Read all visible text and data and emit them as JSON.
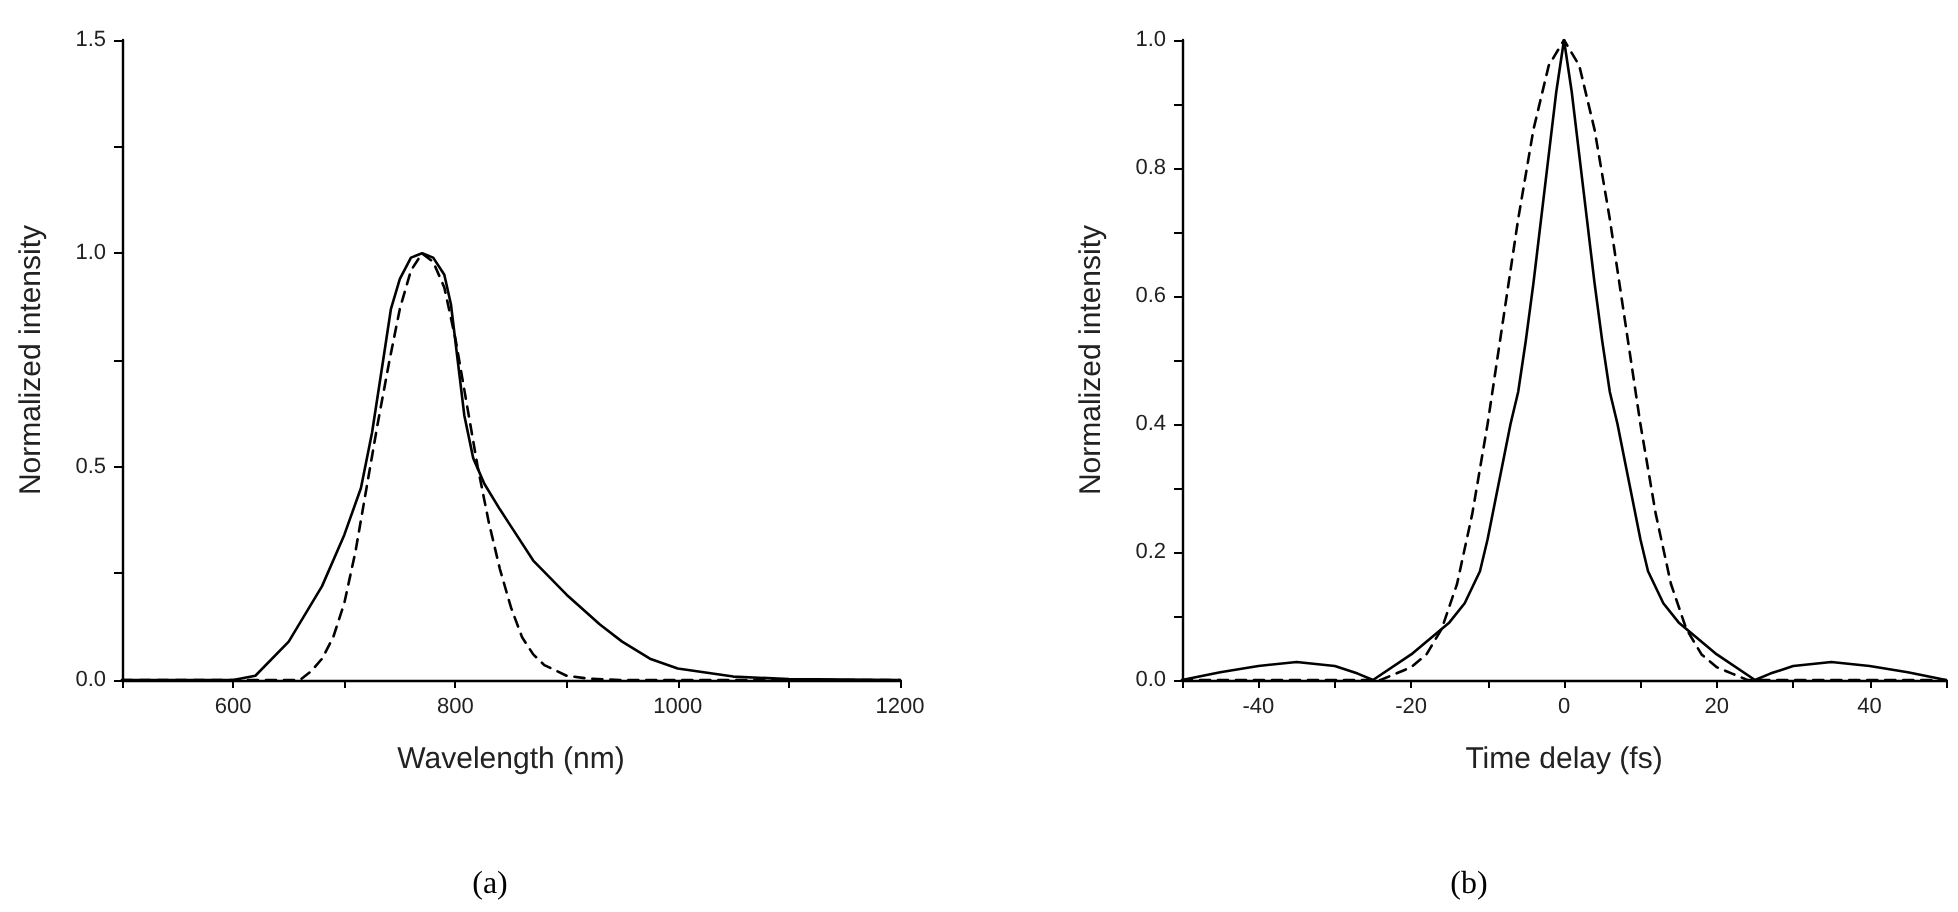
{
  "chart_data": [
    {
      "type": "line",
      "xlabel": "Wavelength (nm)",
      "ylabel": "Normalized intensity",
      "annotations": [
        "(a)"
      ],
      "xlim": [
        500,
        1200
      ],
      "ylim": [
        0,
        1.5
      ],
      "xticks": [
        {
          "value": 500,
          "label": null
        },
        600,
        {
          "value": 700,
          "label": null
        },
        800,
        {
          "value": 900,
          "label": null
        },
        1000,
        {
          "value": 1100,
          "label": null
        },
        1200
      ],
      "yticks": [
        {
          "value": 0,
          "label": "0.0"
        },
        {
          "value": 0.25,
          "label": null
        },
        {
          "value": 0.5,
          "label": "0.5"
        },
        {
          "value": 0.75,
          "label": null
        },
        {
          "value": 1,
          "label": "1.0"
        },
        {
          "value": 1.25,
          "label": null
        },
        {
          "value": 1.5,
          "label": "1.5"
        }
      ],
      "grid": false,
      "marker": "none",
      "series": [
        {
          "color": "#000000",
          "line_style": "solid",
          "x": [
            500,
            600,
            620,
            650,
            680,
            700,
            715,
            725,
            735,
            742,
            750,
            760,
            770,
            780,
            790,
            796,
            802,
            808,
            816,
            826,
            840,
            850,
            870,
            900,
            930,
            950,
            975,
            1000,
            1050,
            1100,
            1200
          ],
          "values": [
            0,
            0,
            0.01,
            0.09,
            0.22,
            0.34,
            0.45,
            0.58,
            0.75,
            0.87,
            0.94,
            0.99,
            1.0,
            0.99,
            0.95,
            0.88,
            0.75,
            0.62,
            0.52,
            0.46,
            0.4,
            0.36,
            0.28,
            0.2,
            0.13,
            0.09,
            0.05,
            0.027,
            0.008,
            0.002,
            0
          ]
        },
        {
          "color": "#000000",
          "line_style": "dashed",
          "x": [
            500,
            660,
            670,
            680,
            690,
            700,
            710,
            720,
            730,
            740,
            750,
            760,
            770,
            780,
            790,
            800,
            810,
            820,
            830,
            840,
            850,
            860,
            870,
            880,
            900,
            920,
            950,
            1200
          ],
          "values": [
            0,
            0,
            0.02,
            0.05,
            0.1,
            0.18,
            0.3,
            0.45,
            0.6,
            0.74,
            0.87,
            0.96,
            1.0,
            0.98,
            0.92,
            0.8,
            0.65,
            0.5,
            0.37,
            0.26,
            0.17,
            0.1,
            0.06,
            0.035,
            0.01,
            0.003,
            0,
            0
          ]
        }
      ]
    },
    {
      "type": "line",
      "xlabel": "Time delay (fs)",
      "ylabel": "Normalized intensity",
      "annotations": [
        "(b)"
      ],
      "xlim": [
        -50,
        50
      ],
      "ylim": [
        0,
        1.0
      ],
      "xticks": [
        {
          "value": -50,
          "label": null
        },
        -40,
        {
          "value": -30,
          "label": null
        },
        -20,
        {
          "value": -10,
          "label": null
        },
        0,
        {
          "value": 10,
          "label": null
        },
        20,
        {
          "value": 30,
          "label": null
        },
        40,
        {
          "value": 50,
          "label": null
        }
      ],
      "yticks": [
        {
          "value": 0,
          "label": "0.0"
        },
        {
          "value": 0.1,
          "label": null
        },
        {
          "value": 0.2,
          "label": "0.2"
        },
        {
          "value": 0.3,
          "label": null
        },
        {
          "value": 0.4,
          "label": "0.4"
        },
        {
          "value": 0.5,
          "label": null
        },
        {
          "value": 0.6,
          "label": "0.6"
        },
        {
          "value": 0.7,
          "label": null
        },
        {
          "value": 0.8,
          "label": "0.8"
        },
        {
          "value": 0.9,
          "label": null
        },
        {
          "value": 1.0,
          "label": "1.0"
        }
      ],
      "grid": false,
      "marker": "none",
      "series": [
        {
          "color": "#000000",
          "line_style": "solid",
          "x": [
            -50,
            -45,
            -40,
            -35,
            -30,
            -27,
            -25,
            -20,
            -15,
            -13,
            -11,
            -10,
            -9,
            -8,
            -7,
            -6,
            -5,
            -4,
            -3,
            -2,
            -1,
            0,
            1,
            2,
            3,
            4,
            5,
            6,
            7,
            8,
            9,
            10,
            11,
            13,
            15,
            20,
            25,
            27,
            30,
            35,
            40,
            45,
            50
          ],
          "values": [
            0,
            0.012,
            0.022,
            0.028,
            0.022,
            0.01,
            0,
            0.04,
            0.09,
            0.12,
            0.17,
            0.22,
            0.28,
            0.34,
            0.4,
            0.45,
            0.53,
            0.62,
            0.72,
            0.82,
            0.92,
            1.0,
            0.92,
            0.82,
            0.72,
            0.62,
            0.53,
            0.45,
            0.4,
            0.34,
            0.28,
            0.22,
            0.17,
            0.12,
            0.09,
            0.04,
            0,
            0.01,
            0.022,
            0.028,
            0.022,
            0.012,
            0
          ]
        },
        {
          "color": "#000000",
          "line_style": "dashed",
          "x": [
            -50,
            -24,
            -22,
            -20,
            -18,
            -16,
            -14,
            -12,
            -10,
            -8,
            -6,
            -4,
            -2,
            0,
            2,
            4,
            6,
            8,
            10,
            12,
            14,
            16,
            18,
            20,
            22,
            24,
            50
          ],
          "values": [
            0,
            0,
            0.01,
            0.02,
            0.04,
            0.08,
            0.15,
            0.26,
            0.4,
            0.56,
            0.72,
            0.86,
            0.96,
            1.0,
            0.96,
            0.86,
            0.72,
            0.56,
            0.4,
            0.26,
            0.15,
            0.08,
            0.04,
            0.02,
            0.01,
            0,
            0
          ]
        }
      ]
    }
  ]
}
